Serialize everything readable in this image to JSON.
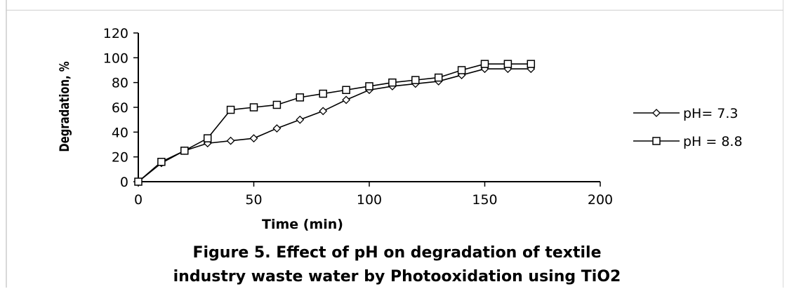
{
  "chart_data": {
    "type": "line",
    "title": "",
    "xlabel": "Time (min)",
    "ylabel": "Degradation, %",
    "xlim": [
      0,
      200
    ],
    "ylim": [
      0,
      120
    ],
    "xticks": [
      0,
      50,
      100,
      150,
      200
    ],
    "yticks": [
      0,
      20,
      40,
      60,
      80,
      100,
      120
    ],
    "grid": false,
    "legend_position": "right",
    "series": [
      {
        "name": "pH= 7.3",
        "marker": "diamond",
        "color": "#000000",
        "x": [
          0,
          10,
          20,
          30,
          40,
          50,
          60,
          70,
          80,
          90,
          100,
          110,
          120,
          130,
          140,
          150,
          160,
          170
        ],
        "y": [
          0,
          15,
          25,
          31,
          33,
          35,
          43,
          50,
          57,
          66,
          74,
          77,
          79,
          81,
          86,
          91,
          91,
          91
        ]
      },
      {
        "name": "pH = 8.8",
        "marker": "square",
        "color": "#000000",
        "x": [
          0,
          10,
          20,
          30,
          40,
          50,
          60,
          70,
          80,
          90,
          100,
          110,
          120,
          130,
          140,
          150,
          160,
          170
        ],
        "y": [
          0,
          16,
          25,
          35,
          58,
          60,
          62,
          68,
          71,
          74,
          77,
          80,
          82,
          84,
          90,
          95,
          95,
          95
        ]
      }
    ]
  },
  "caption": {
    "line1": "Figure 5. Effect of pH on degradation of textile",
    "line2": "industry waste water by Photooxidation using TiO2"
  }
}
